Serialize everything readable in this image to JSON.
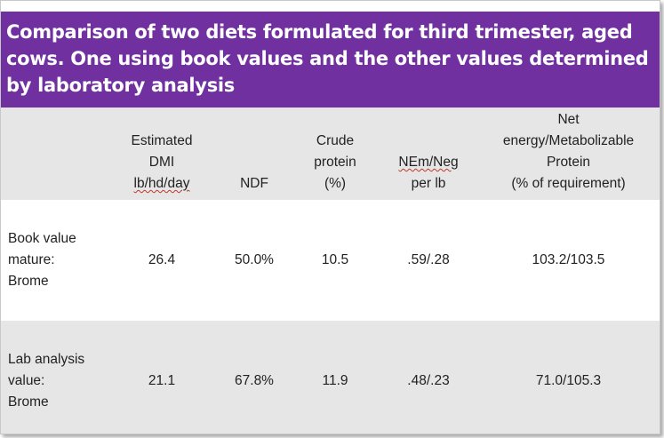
{
  "title": "Comparison of two diets formulated for third trimester, aged cows. One using book values and the other values determined by laboratory analysis",
  "colors": {
    "title_bg": "#7030a0",
    "title_text": "#ffffff",
    "shaded_row": "#e6e6e6"
  },
  "headers": {
    "dmi": [
      "Estimated",
      "DMI",
      "lb/hd/day"
    ],
    "ndf": "NDF",
    "cp": [
      "Crude",
      "protein",
      "(%)"
    ],
    "ne": [
      "NEm/Neg",
      "per lb"
    ],
    "nemp": [
      "Net",
      "energy/Metabolizable",
      "Protein",
      "(% of requirement)"
    ]
  },
  "rows": [
    {
      "label": [
        "Book value",
        "mature:",
        "Brome"
      ],
      "dmi": "26.4",
      "ndf": "50.0%",
      "cp": "10.5",
      "ne": ".59/.28",
      "nemp": "103.2/103.5"
    },
    {
      "label": [
        "Lab analysis",
        "value:",
        "Brome"
      ],
      "dmi": "21.1",
      "ndf": "67.8%",
      "cp": "11.9",
      "ne": ".48/.23",
      "nemp": "71.0/105.3"
    }
  ]
}
